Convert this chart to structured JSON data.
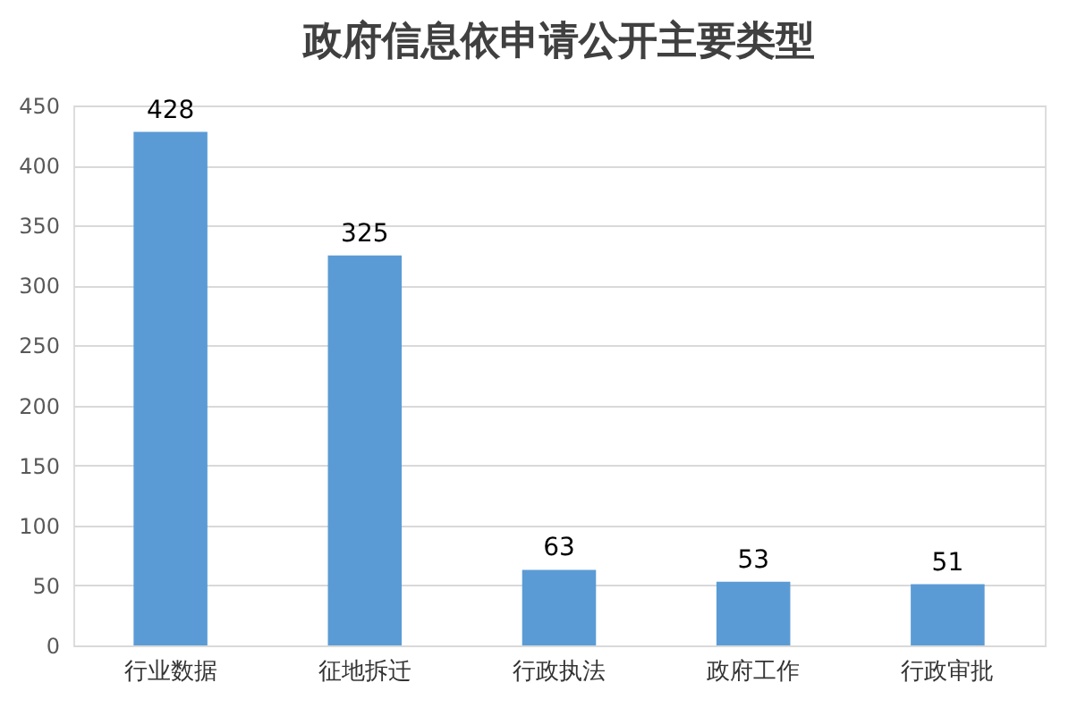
{
  "chart_data": {
    "type": "bar",
    "title": "政府信息依申请公开主要类型",
    "categories": [
      "行业数据",
      "征地拆迁",
      "行政执法",
      "政府工作",
      "行政审批"
    ],
    "values": [
      428,
      325,
      63,
      53,
      51
    ],
    "color": "#5b9bd5",
    "ylim": [
      0,
      450
    ],
    "yticks": [
      0,
      50,
      100,
      150,
      200,
      250,
      300,
      350,
      400,
      450
    ],
    "grid": "y",
    "data_labels": true
  }
}
